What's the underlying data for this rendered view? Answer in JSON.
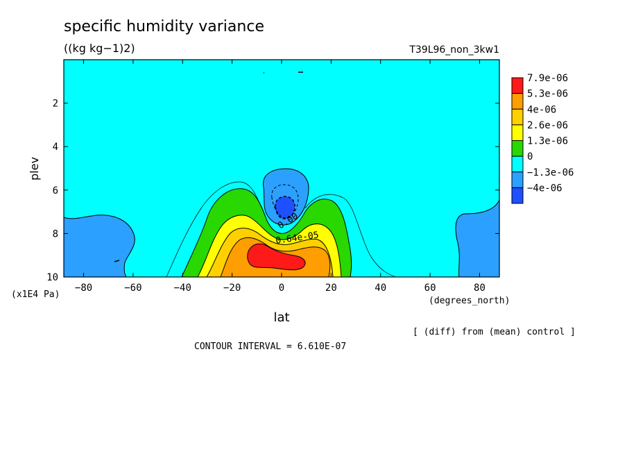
{
  "chart_data": {
    "type": "heatmap",
    "title": "specific humidity variance",
    "units": "((kg kg−1)2)",
    "experiment": "T39L96_non_3kw1",
    "xlabel": "lat",
    "xunits": "(degrees_north)",
    "ylabel": "plev",
    "yunits": "(x1E4 Pa)",
    "xlim": [
      -88,
      88
    ],
    "ylim": [
      0,
      10
    ],
    "y_inverted": true,
    "x_ticks": [
      -80,
      -60,
      -40,
      -20,
      0,
      20,
      40,
      60,
      80
    ],
    "y_ticks": [
      2,
      4,
      6,
      8,
      10
    ],
    "legend": {
      "placement": "right",
      "labels": [
        "7.9e-06",
        "5.3e-06",
        "4e-06",
        "2.6e-06",
        "1.3e-06",
        "0",
        "−1.3e-06",
        "−4e-06"
      ],
      "colors": [
        "#ff1a1a",
        "#ff9e00",
        "#ffd000",
        "#ffff00",
        "#28d800",
        "#00ffff",
        "#2ca0ff",
        "#1e50ff"
      ]
    },
    "contour_labels": [
      "0.00",
      "0.64e-05"
    ],
    "note": "[ (diff) from (mean) control ]",
    "contour_interval": "CONTOUR INTERVAL = 6.610E-07"
  }
}
